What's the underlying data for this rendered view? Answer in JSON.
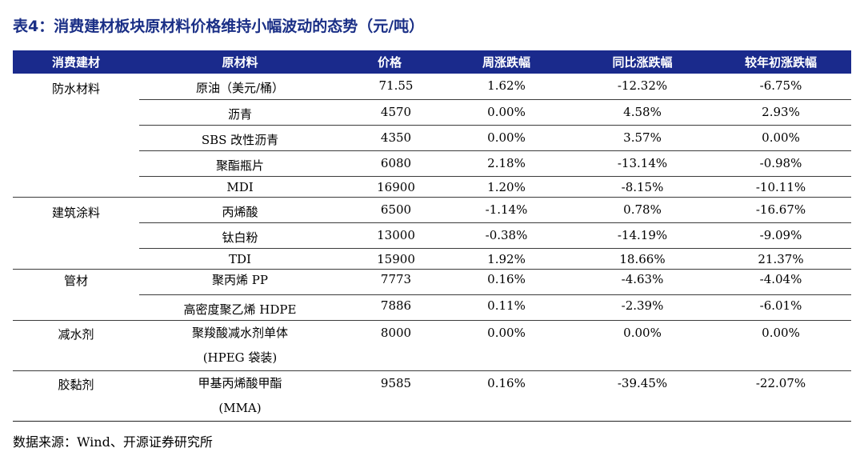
{
  "title": "表4：消费建材板块原材料价格维持小幅波动的态势（元/吨）",
  "table": {
    "headers": [
      "消费建材",
      "原材料",
      "价格",
      "周涨跌幅",
      "同比涨跌幅",
      "较年初涨跌幅"
    ],
    "rows": [
      {
        "category": "防水材料",
        "material": "原油（美元/桶）",
        "price": "71.55",
        "weekly": "1.62%",
        "yoy": "-12.32%",
        "ytd": "-6.75%"
      },
      {
        "category": "",
        "material": "沥青",
        "price": "4570",
        "weekly": "0.00%",
        "yoy": "4.58%",
        "ytd": "2.93%"
      },
      {
        "category": "",
        "material": "SBS 改性沥青",
        "price": "4350",
        "weekly": "0.00%",
        "yoy": "3.57%",
        "ytd": "0.00%"
      },
      {
        "category": "",
        "material": "聚酯瓶片",
        "price": "6080",
        "weekly": "2.18%",
        "yoy": "-13.14%",
        "ytd": "-0.98%"
      },
      {
        "category": "",
        "material": "MDI",
        "price": "16900",
        "weekly": "1.20%",
        "yoy": "-8.15%",
        "ytd": "-10.11%"
      },
      {
        "category": "建筑涂料",
        "material": "丙烯酸",
        "price": "6500",
        "weekly": "-1.14%",
        "yoy": "0.78%",
        "ytd": "-16.67%"
      },
      {
        "category": "",
        "material": "钛白粉",
        "price": "13000",
        "weekly": "-0.38%",
        "yoy": "-14.19%",
        "ytd": "-9.09%"
      },
      {
        "category": "",
        "material": "TDI",
        "price": "15900",
        "weekly": "1.92%",
        "yoy": "18.66%",
        "ytd": "21.37%"
      },
      {
        "category": "管材",
        "material": "聚丙烯 PP",
        "price": "7773",
        "weekly": "0.16%",
        "yoy": "-4.63%",
        "ytd": "-4.04%"
      },
      {
        "category": "",
        "material": "高密度聚乙烯 HDPE",
        "price": "7886",
        "weekly": "0.11%",
        "yoy": "-2.39%",
        "ytd": "-6.01%"
      },
      {
        "category": "减水剂",
        "material_lines": [
          "聚羧酸减水剂单体",
          "(HPEG 袋装)"
        ],
        "price": "8000",
        "weekly": "0.00%",
        "yoy": "0.00%",
        "ytd": "0.00%"
      },
      {
        "category": "胶黏剂",
        "material_lines": [
          "甲基丙烯酸甲酯",
          "(MMA)"
        ],
        "price": "9585",
        "weekly": "0.16%",
        "yoy": "-39.45%",
        "ytd": "-22.07%"
      }
    ]
  },
  "source": "数据来源：Wind、开源证券研究所"
}
